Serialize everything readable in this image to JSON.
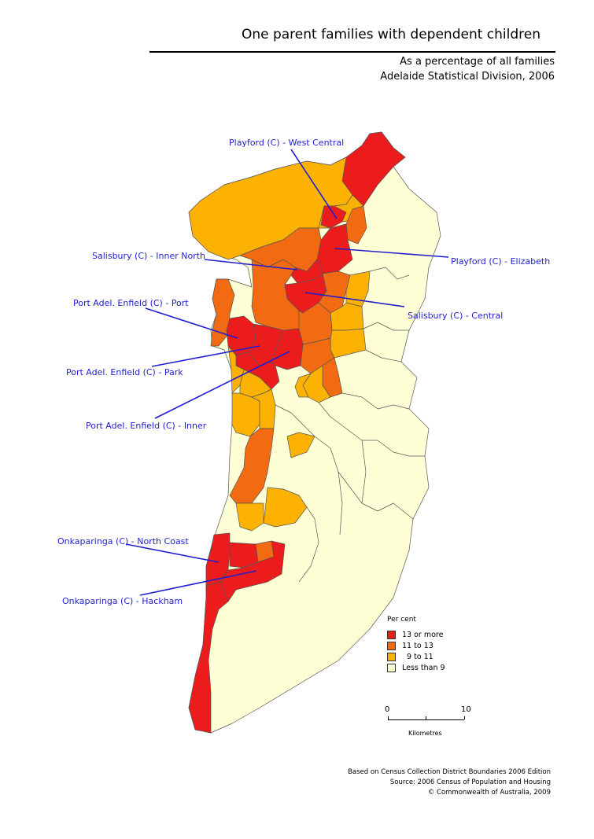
{
  "title": "One parent families with dependent children",
  "subtitle_line1": "As a percentage of all families",
  "subtitle_line2": "Adelaide Statistical Division, 2006",
  "colors": {
    "c13plus": "#ec1c1c",
    "c11to13": "#f26b12",
    "c9to11": "#fdb201",
    "cless9": "#ffffd5",
    "border": "#555555",
    "callout": "#1f1fd0"
  },
  "callouts": {
    "playford_west_central": "Playford (C) - West Central",
    "salisbury_inner_north": "Salisbury (C) - Inner North",
    "playford_elizabeth": "Playford (C) - Elizabeth",
    "port_adel_port": "Port Adel. Enfield (C) - Port",
    "salisbury_central": "Salisbury (C) - Central",
    "port_adel_park": "Port Adel. Enfield (C) - Park",
    "port_adel_inner": "Port Adel. Enfield (C) - Inner",
    "onkaparinga_north_coast": "Onkaparinga (C) - North Coast",
    "onkaparinga_hackham": "Onkaparinga (C) - Hackham"
  },
  "legend": {
    "title": "Per cent",
    "items": [
      {
        "label": "13 or more",
        "color": "#ec1c1c"
      },
      {
        "label": "11 to 13",
        "color": "#f26b12"
      },
      {
        "label": "9 to 11",
        "color": "#fdb201"
      },
      {
        "label": "Less than 9",
        "color": "#ffffd5"
      }
    ]
  },
  "scale": {
    "min": "0",
    "max": "10",
    "unit": "Kilometres"
  },
  "source": {
    "line1": "Based on Census Collection District Boundaries 2006 Edition",
    "line2": "Source: 2006 Census of Population and Housing",
    "line3": "© Commonwealth of Australia, 2009"
  }
}
